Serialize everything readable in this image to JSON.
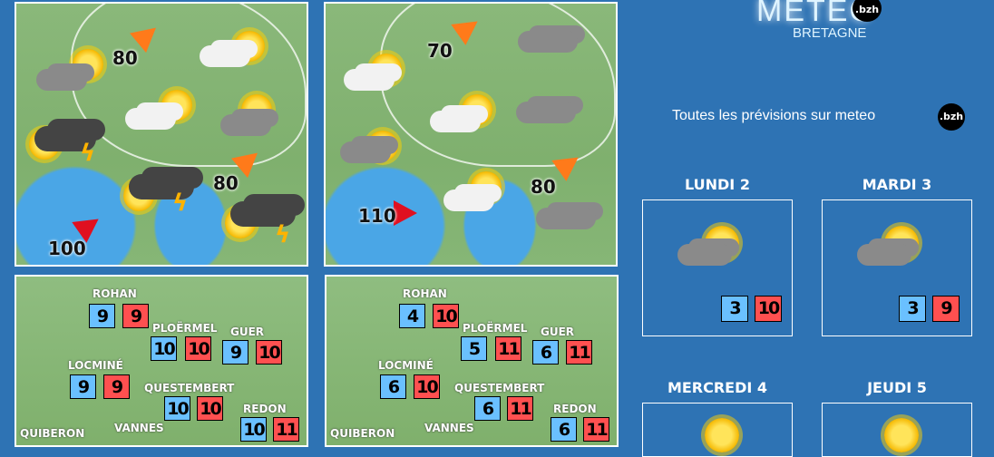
{
  "logo": {
    "text": "METEO",
    "sub": "BRETAGNE",
    "badge": ".bzh"
  },
  "promo": {
    "text": "Toutes les prévisions sur meteo",
    "badge": ".bzh"
  },
  "wind_maps": [
    {
      "winds": [
        {
          "speed": "80",
          "color": "#ff7a1a"
        },
        {
          "speed": "80",
          "color": "#ff7a1a"
        },
        {
          "speed": "100",
          "color": "#e01020"
        }
      ]
    },
    {
      "winds": [
        {
          "speed": "70",
          "color": "#ff7a1a"
        },
        {
          "speed": "110",
          "color": "#e01020"
        },
        {
          "speed": "80",
          "color": "#ff7a1a"
        }
      ]
    }
  ],
  "temp_maps": [
    {
      "cities": [
        {
          "name": "ROHAN",
          "min": "9",
          "max": "9"
        },
        {
          "name": "PLOËRMEL",
          "min": "10",
          "max": "10"
        },
        {
          "name": "GUER",
          "min": "9",
          "max": "10"
        },
        {
          "name": "LOCMINÉ",
          "min": "9",
          "max": "9"
        },
        {
          "name": "QUESTEMBERT",
          "min": "10",
          "max": "10"
        },
        {
          "name": "REDON",
          "min": "10",
          "max": "11"
        },
        {
          "name": "QUIBERON"
        },
        {
          "name": "VANNES"
        }
      ]
    },
    {
      "cities": [
        {
          "name": "ROHAN",
          "min": "4",
          "max": "10"
        },
        {
          "name": "PLOËRMEL",
          "min": "5",
          "max": "11"
        },
        {
          "name": "GUER",
          "min": "6",
          "max": "11"
        },
        {
          "name": "LOCMINÉ",
          "min": "6",
          "max": "10"
        },
        {
          "name": "QUESTEMBERT",
          "min": "6",
          "max": "11"
        },
        {
          "name": "REDON",
          "min": "6",
          "max": "11"
        },
        {
          "name": "QUIBERON"
        },
        {
          "name": "VANNES"
        }
      ]
    }
  ],
  "forecast_days": [
    {
      "label": "LUNDI 2",
      "min": "3",
      "max": "10",
      "icon": "sun-cloud-rain-icon"
    },
    {
      "label": "MARDI 3",
      "min": "3",
      "max": "9",
      "icon": "sun-cloud-rain-icon"
    },
    {
      "label": "MERCREDI 4",
      "icon": "sun-cloud-icon"
    },
    {
      "label": "JEUDI 5",
      "icon": "sun-cloud-icon"
    }
  ],
  "colors": {
    "background": "#2e73b4",
    "min_temp": "#6ac0ff",
    "max_temp": "#ff5050"
  }
}
